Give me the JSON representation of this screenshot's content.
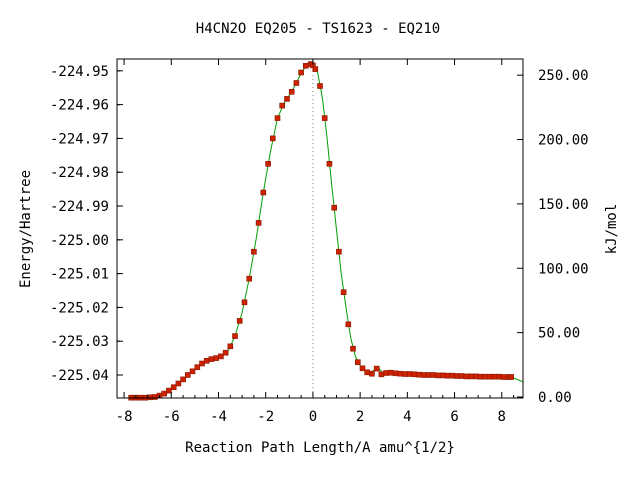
{
  "chart_data": {
    "type": "scatter",
    "title": "H4CN2O   EQ205 - TS1623 - EQ210",
    "xlabel": "Reaction Path Length/A amu^{1/2}",
    "ylabel_left": "Energy/Hartree",
    "ylabel_right": "kJ/mol",
    "xlim": [
      -8.3,
      8.9
    ],
    "ylim": [
      -225.0468,
      -224.9465
    ],
    "x_ticks": [
      -8,
      -6,
      -4,
      -2,
      0,
      2,
      4,
      6,
      8
    ],
    "x_tick_labels": [
      "-8",
      "-6",
      "-4",
      "-2",
      "0",
      "2",
      "4",
      "6",
      "8"
    ],
    "y_ticks": [
      -224.95,
      -224.96,
      -224.97,
      -224.98,
      -224.99,
      -225.0,
      -225.01,
      -225.02,
      -225.03,
      -225.04
    ],
    "y_tick_labels": [
      "-224.95",
      "-224.96",
      "-224.97",
      "-224.98",
      "-224.99",
      "-225.00",
      "-225.01",
      "-225.02",
      "-225.03",
      "-225.04"
    ],
    "right_axis": {
      "zero_energy_hartree": -225.0465,
      "kj_per_hartree": 2625.5,
      "ticks": [
        0,
        50,
        100,
        150,
        200,
        250
      ],
      "tick_labels": [
        "0.00",
        "50.00",
        "100.00",
        "150.00",
        "200.00",
        "250.00"
      ]
    },
    "ts_marker_x": 0.0,
    "colors": {
      "curve": "#00a000",
      "points": "#cc2200",
      "points_stroke": "#8a1500",
      "ts_marker": "#888888",
      "axis": "#000000"
    },
    "series": [
      {
        "points_x": [
          -7.7,
          -7.5,
          -7.3,
          -7.1,
          -6.9,
          -6.7,
          -6.5,
          -6.3,
          -6.1,
          -5.9,
          -5.7,
          -5.5,
          -5.3,
          -5.1,
          -4.9,
          -4.7,
          -4.5,
          -4.3,
          -4.1,
          -3.9,
          -3.7,
          -3.5,
          -3.3,
          -3.1,
          -2.9,
          -2.7,
          -2.5,
          -2.3,
          -2.1,
          -1.9,
          -1.7,
          -1.5,
          -1.3,
          -1.1,
          -0.9,
          -0.7,
          -0.5,
          -0.3,
          -0.1,
          0.0,
          0.1,
          0.3,
          0.5,
          0.7,
          0.9,
          1.1,
          1.3,
          1.5,
          1.7,
          1.9,
          2.1,
          2.3,
          2.5,
          2.7,
          2.9,
          3.1,
          3.3,
          3.5,
          3.7,
          3.9,
          4.1,
          4.3,
          4.5,
          4.7,
          4.9,
          5.1,
          5.3,
          5.5,
          5.7,
          5.9,
          6.1,
          6.3,
          6.5,
          6.7,
          6.9,
          7.1,
          7.3,
          7.5,
          7.7,
          7.9,
          8.1,
          8.3,
          8.4
        ],
        "points_y": [
          -225.0467,
          -225.0467,
          -225.0467,
          -225.0467,
          -225.0466,
          -225.0465,
          -225.0461,
          -225.0455,
          -225.0446,
          -225.0436,
          -225.0425,
          -225.0413,
          -225.04,
          -225.0389,
          -225.0377,
          -225.0366,
          -225.0358,
          -225.0353,
          -225.035,
          -225.0345,
          -225.0334,
          -225.0315,
          -225.0285,
          -225.024,
          -225.0185,
          -225.0115,
          -225.0035,
          -224.995,
          -224.986,
          -224.9775,
          -224.97,
          -224.964,
          -224.9603,
          -224.9583,
          -224.9562,
          -224.9536,
          -224.9505,
          -224.9485,
          -224.948,
          -224.9484,
          -224.9495,
          -224.9545,
          -224.964,
          -224.9775,
          -224.9905,
          -225.0035,
          -225.0155,
          -225.025,
          -225.0322,
          -225.0362,
          -225.038,
          -225.0392,
          -225.0396,
          -225.0381,
          -225.0398,
          -225.0394,
          -225.0393,
          -225.0395,
          -225.0396,
          -225.0397,
          -225.0397,
          -225.0398,
          -225.0399,
          -225.04,
          -225.04,
          -225.04,
          -225.0401,
          -225.0401,
          -225.0402,
          -225.0402,
          -225.0403,
          -225.0403,
          -225.0404,
          -225.0404,
          -225.0404,
          -225.0405,
          -225.0405,
          -225.0405,
          -225.0405,
          -225.0405,
          -225.0406,
          -225.0406,
          -225.0406
        ],
        "curve_x": [
          -7.8,
          -7.5,
          -7.2,
          -6.9,
          -6.6,
          -6.3,
          -6.0,
          -5.7,
          -5.4,
          -5.1,
          -4.8,
          -4.5,
          -4.2,
          -3.9,
          -3.6,
          -3.3,
          -3.0,
          -2.7,
          -2.4,
          -2.1,
          -1.8,
          -1.5,
          -1.2,
          -0.9,
          -0.6,
          -0.3,
          0.0,
          0.2,
          0.4,
          0.6,
          0.8,
          1.0,
          1.2,
          1.4,
          1.6,
          1.8,
          2.0,
          2.2,
          2.4,
          2.6,
          2.8,
          3.0,
          3.3,
          3.6,
          4.0,
          4.5,
          5.0,
          5.5,
          6.0,
          6.5,
          7.0,
          7.5,
          8.0,
          8.4,
          8.9
        ],
        "curve_y": [
          -225.0467,
          -225.0467,
          -225.0467,
          -225.0466,
          -225.0464,
          -225.0455,
          -225.044,
          -225.0425,
          -225.0407,
          -225.0389,
          -225.0372,
          -225.0358,
          -225.0351,
          -225.0345,
          -225.033,
          -225.0285,
          -225.0215,
          -225.0115,
          -224.9995,
          -224.986,
          -224.974,
          -224.964,
          -224.9593,
          -224.9562,
          -224.9521,
          -224.9485,
          -224.9484,
          -224.9505,
          -224.958,
          -224.97,
          -224.984,
          -224.997,
          -225.01,
          -225.02,
          -225.029,
          -225.0345,
          -225.0372,
          -225.0388,
          -225.0395,
          -225.0385,
          -225.0381,
          -225.0396,
          -225.0394,
          -225.0395,
          -225.0397,
          -225.0399,
          -225.04,
          -225.0401,
          -225.0402,
          -225.0403,
          -225.0404,
          -225.0405,
          -225.0405,
          -225.0406,
          -225.042
        ]
      }
    ]
  }
}
